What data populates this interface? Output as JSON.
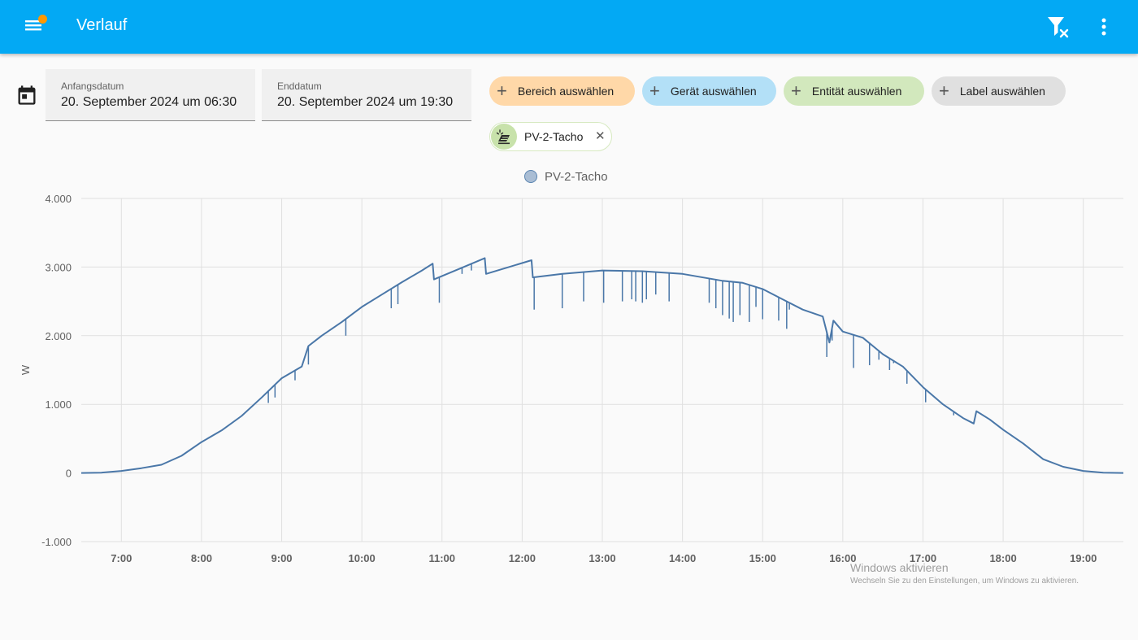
{
  "header": {
    "title": "Verlauf",
    "menu_icon": "menu-icon",
    "filter_icon": "filter-remove-icon",
    "more_icon": "dots-vertical-icon",
    "notification_color": "#ff9800"
  },
  "dates": {
    "calendar_icon": "calendar-icon",
    "start_label": "Anfangsdatum",
    "start_value": "20. September 2024 um 06:30",
    "end_label": "Enddatum",
    "end_value": "20. September 2024 um 19:30"
  },
  "targets": {
    "area": "Bereich auswählen",
    "device": "Gerät auswählen",
    "entity": "Entität auswählen",
    "label": "Label auswählen"
  },
  "selected": {
    "name": "PV-2-Tacho",
    "icon": "solar-power-icon"
  },
  "chart_data": {
    "type": "line",
    "ylabel": "W",
    "y_ticks": [
      "4.000",
      "3.000",
      "2.000",
      "1.000",
      "0",
      "-1.000"
    ],
    "x_ticks": [
      "7:00",
      "8:00",
      "9:00",
      "10:00",
      "11:00",
      "12:00",
      "13:00",
      "14:00",
      "15:00",
      "16:00",
      "17:00",
      "18:00",
      "19:00"
    ],
    "ylim": [
      -1000,
      4000
    ],
    "xlim": [
      "06:30",
      "19:30"
    ],
    "grid": true,
    "legend_position": "top-center",
    "series": [
      {
        "name": "PV-2-Tacho",
        "color": "#4a77a8",
        "points": [
          [
            "06:30",
            0
          ],
          [
            "06:45",
            5
          ],
          [
            "07:00",
            30
          ],
          [
            "07:15",
            70
          ],
          [
            "07:30",
            120
          ],
          [
            "07:45",
            250
          ],
          [
            "08:00",
            450
          ],
          [
            "08:15",
            620
          ],
          [
            "08:30",
            830
          ],
          [
            "08:45",
            1100
          ],
          [
            "09:00",
            1380
          ],
          [
            "09:15",
            1550
          ],
          [
            "09:20",
            1850
          ],
          [
            "09:30",
            2000
          ],
          [
            "09:45",
            2200
          ],
          [
            "10:00",
            2420
          ],
          [
            "10:15",
            2600
          ],
          [
            "10:30",
            2780
          ],
          [
            "10:45",
            2950
          ],
          [
            "10:53",
            3050
          ],
          [
            "10:54",
            2820
          ],
          [
            "11:00",
            2870
          ],
          [
            "11:15",
            2990
          ],
          [
            "11:32",
            3130
          ],
          [
            "11:33",
            2900
          ],
          [
            "11:50",
            3000
          ],
          [
            "12:07",
            3100
          ],
          [
            "12:08",
            2850
          ],
          [
            "12:30",
            2900
          ],
          [
            "13:00",
            2950
          ],
          [
            "13:30",
            2940
          ],
          [
            "14:00",
            2900
          ],
          [
            "14:30",
            2800
          ],
          [
            "14:45",
            2770
          ],
          [
            "15:00",
            2680
          ],
          [
            "15:15",
            2530
          ],
          [
            "15:30",
            2380
          ],
          [
            "15:45",
            2280
          ],
          [
            "15:50",
            1900
          ],
          [
            "15:53",
            2220
          ],
          [
            "16:00",
            2060
          ],
          [
            "16:15",
            1970
          ],
          [
            "16:30",
            1730
          ],
          [
            "16:45",
            1550
          ],
          [
            "17:00",
            1250
          ],
          [
            "17:15",
            1000
          ],
          [
            "17:30",
            800
          ],
          [
            "17:38",
            720
          ],
          [
            "17:40",
            900
          ],
          [
            "17:50",
            780
          ],
          [
            "18:00",
            630
          ],
          [
            "18:15",
            430
          ],
          [
            "18:30",
            200
          ],
          [
            "18:45",
            90
          ],
          [
            "19:00",
            30
          ],
          [
            "19:15",
            5
          ],
          [
            "19:30",
            0
          ]
        ],
        "dips": [
          [
            "08:50",
            1020
          ],
          [
            "08:55",
            1100
          ],
          [
            "09:10",
            1350
          ],
          [
            "09:20",
            1580
          ],
          [
            "09:48",
            2000
          ],
          [
            "10:22",
            2400
          ],
          [
            "10:27",
            2460
          ],
          [
            "10:58",
            2480
          ],
          [
            "11:15",
            2900
          ],
          [
            "11:22",
            2950
          ],
          [
            "12:09",
            2380
          ],
          [
            "12:30",
            2400
          ],
          [
            "12:46",
            2500
          ],
          [
            "13:01",
            2480
          ],
          [
            "13:15",
            2500
          ],
          [
            "13:22",
            2530
          ],
          [
            "13:25",
            2500
          ],
          [
            "13:30",
            2480
          ],
          [
            "13:33",
            2530
          ],
          [
            "13:40",
            2600
          ],
          [
            "13:50",
            2500
          ],
          [
            "14:20",
            2480
          ],
          [
            "14:25",
            2400
          ],
          [
            "14:30",
            2300
          ],
          [
            "14:35",
            2250
          ],
          [
            "14:38",
            2200
          ],
          [
            "14:43",
            2300
          ],
          [
            "14:50",
            2200
          ],
          [
            "14:55",
            2420
          ],
          [
            "15:00",
            2240
          ],
          [
            "15:12",
            2220
          ],
          [
            "15:18",
            2100
          ],
          [
            "15:20",
            2380
          ],
          [
            "15:48",
            1690
          ],
          [
            "15:52",
            1930
          ],
          [
            "16:08",
            1530
          ],
          [
            "16:20",
            1570
          ],
          [
            "16:27",
            1650
          ],
          [
            "16:35",
            1500
          ],
          [
            "16:38",
            1600
          ],
          [
            "16:48",
            1300
          ],
          [
            "16:55",
            1350
          ],
          [
            "17:02",
            1030
          ],
          [
            "17:23",
            840
          ]
        ]
      }
    ]
  },
  "watermark": {
    "title": "Windows aktivieren",
    "subtitle": "Wechseln Sie zu den Einstellungen, um Windows zu aktivieren."
  }
}
